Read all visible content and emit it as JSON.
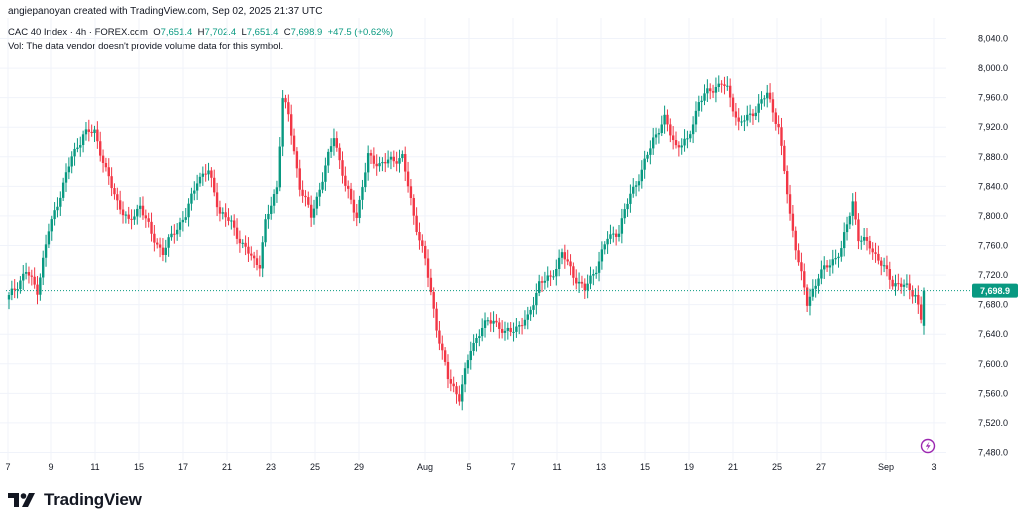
{
  "credit": "angiepanoyan created with TradingView.com, Sep 02, 2025 21:37 UTC",
  "legend": {
    "symbol": "CAC 40 Index · 4h · FOREX.com",
    "o_label": "O",
    "o": "7,651.4",
    "h_label": "H",
    "h": "7,702.4",
    "l_label": "L",
    "l": "7,651.4",
    "c_label": "C",
    "c": "7,698.9",
    "change": "+47.5 (+0.62%)",
    "vol_note": "Vol: The data vendor doesn't provide volume data for this symbol."
  },
  "colors": {
    "up": "#089981",
    "down": "#f23645",
    "last_label": "#089981",
    "grid": "#f0f3fa"
  },
  "brand": "TradingView",
  "chart_data": {
    "type": "candlestick",
    "ylim": [
      7480,
      8060
    ],
    "yticks": [
      "8,040.0",
      "8,000.0",
      "7,960.0",
      "7,920.0",
      "7,880.0",
      "7,840.0",
      "7,800.0",
      "7,760.0",
      "7,720.0",
      "7,680.0",
      "7,640.0",
      "7,600.0",
      "7,560.0",
      "7,520.0",
      "7,480.0"
    ],
    "ytick_values": [
      8040,
      8000,
      7960,
      7920,
      7880,
      7840,
      7800,
      7760,
      7720,
      7680,
      7640,
      7600,
      7560,
      7520,
      7480
    ],
    "xticks": [
      "7",
      "9",
      "11",
      "15",
      "17",
      "21",
      "23",
      "25",
      "29",
      "Aug",
      "5",
      "7",
      "11",
      "13",
      "15",
      "19",
      "21",
      "25",
      "27",
      "Sep",
      "3"
    ],
    "last_price": 7698.9,
    "last_price_label": "7,698.9",
    "anchors": [
      [
        0,
        7690
      ],
      [
        6,
        7725
      ],
      [
        10,
        7700
      ],
      [
        14,
        7780
      ],
      [
        18,
        7830
      ],
      [
        22,
        7880
      ],
      [
        26,
        7910
      ],
      [
        30,
        7915
      ],
      [
        34,
        7860
      ],
      [
        38,
        7820
      ],
      [
        42,
        7790
      ],
      [
        46,
        7815
      ],
      [
        50,
        7775
      ],
      [
        54,
        7750
      ],
      [
        58,
        7780
      ],
      [
        62,
        7800
      ],
      [
        66,
        7850
      ],
      [
        70,
        7860
      ],
      [
        74,
        7805
      ],
      [
        78,
        7790
      ],
      [
        82,
        7760
      ],
      [
        86,
        7740
      ],
      [
        88,
        7735
      ],
      [
        90,
        7790
      ],
      [
        94,
        7840
      ],
      [
        96,
        7960
      ],
      [
        98,
        7935
      ],
      [
        102,
        7840
      ],
      [
        106,
        7800
      ],
      [
        110,
        7850
      ],
      [
        114,
        7910
      ],
      [
        118,
        7840
      ],
      [
        122,
        7800
      ],
      [
        126,
        7880
      ],
      [
        130,
        7870
      ],
      [
        134,
        7875
      ],
      [
        138,
        7880
      ],
      [
        142,
        7800
      ],
      [
        146,
        7740
      ],
      [
        150,
        7650
      ],
      [
        154,
        7580
      ],
      [
        158,
        7555
      ],
      [
        162,
        7620
      ],
      [
        166,
        7650
      ],
      [
        170,
        7660
      ],
      [
        174,
        7640
      ],
      [
        178,
        7650
      ],
      [
        182,
        7660
      ],
      [
        186,
        7710
      ],
      [
        190,
        7715
      ],
      [
        194,
        7750
      ],
      [
        198,
        7720
      ],
      [
        202,
        7700
      ],
      [
        206,
        7730
      ],
      [
        210,
        7770
      ],
      [
        214,
        7780
      ],
      [
        218,
        7830
      ],
      [
        222,
        7860
      ],
      [
        226,
        7905
      ],
      [
        230,
        7930
      ],
      [
        234,
        7895
      ],
      [
        238,
        7900
      ],
      [
        242,
        7955
      ],
      [
        246,
        7970
      ],
      [
        250,
        7980
      ],
      [
        252,
        7970
      ],
      [
        256,
        7925
      ],
      [
        260,
        7935
      ],
      [
        264,
        7955
      ],
      [
        266,
        7965
      ],
      [
        270,
        7920
      ],
      [
        274,
        7800
      ],
      [
        278,
        7720
      ],
      [
        280,
        7680
      ],
      [
        284,
        7720
      ],
      [
        288,
        7735
      ],
      [
        292,
        7755
      ],
      [
        296,
        7820
      ],
      [
        298,
        7770
      ],
      [
        302,
        7760
      ],
      [
        306,
        7735
      ],
      [
        310,
        7710
      ],
      [
        314,
        7705
      ],
      [
        318,
        7695
      ],
      [
        320,
        7660
      ],
      [
        321,
        7698.9
      ]
    ]
  }
}
